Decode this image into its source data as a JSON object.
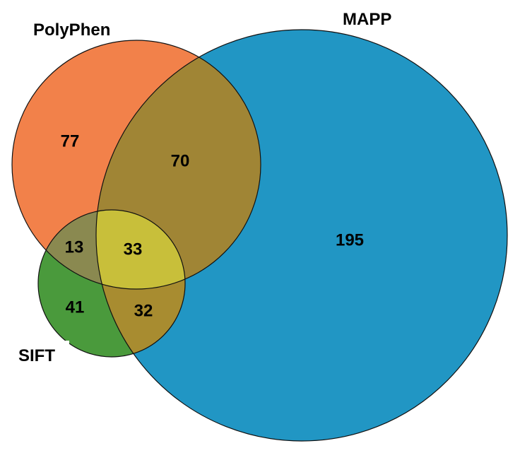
{
  "sets": {
    "polyphen": {
      "label": "PolyPhen",
      "color": "#f2814a"
    },
    "mapp": {
      "label": "MAPP",
      "color": "#2196c4"
    },
    "sift": {
      "label": "SIFT",
      "color": "#4a9a3c"
    }
  },
  "regions": {
    "polyphen_only": "77",
    "polyphen_mapp": "70",
    "mapp_only": "195",
    "polyphen_sift": "13",
    "all_three": "33",
    "sift_only": "41",
    "sift_mapp": "32"
  },
  "region_colors": {
    "polyphen_mapp": "#a08535",
    "polyphen_sift": "#8a8950",
    "all_three": "#c8bf3a",
    "sift_mapp": "#a88c30"
  }
}
